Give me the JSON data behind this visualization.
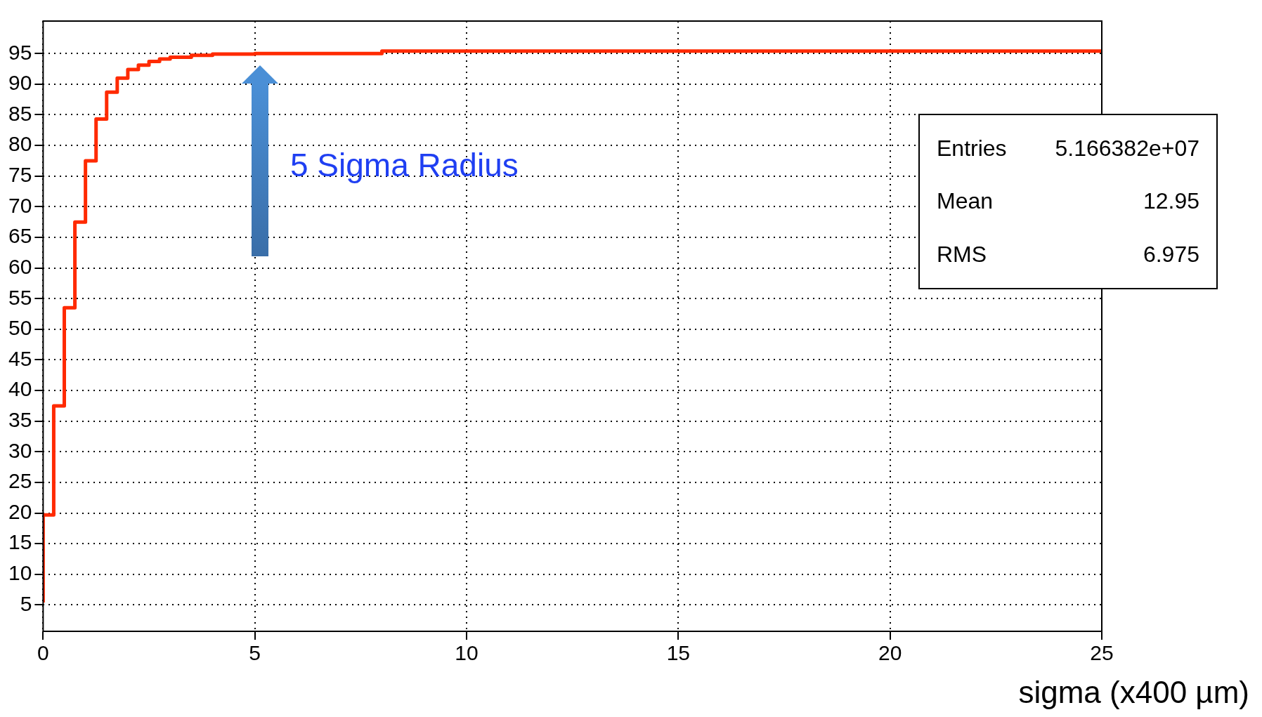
{
  "chart_data": {
    "type": "step",
    "xlabel": "sigma (x400 µm)",
    "x": [
      0,
      0.25,
      0.5,
      0.75,
      1,
      1.25,
      1.5,
      1.75,
      2,
      2.25,
      2.5,
      2.75,
      3,
      3.5,
      4,
      5,
      8,
      16.8,
      25
    ],
    "values": [
      5.4,
      19.7,
      37.5,
      53.5,
      67.5,
      77.5,
      84.3,
      88.7,
      91,
      92.4,
      93.1,
      93.7,
      94.1,
      94.4,
      94.7,
      94.9,
      95,
      95.4,
      95.4
    ],
    "color": "#ff2a00",
    "xlim": [
      0,
      25
    ],
    "xticks": [
      0,
      5,
      10,
      15,
      20,
      25
    ],
    "ylim": [
      0.7,
      100.3
    ],
    "yticks": [
      5,
      10,
      15,
      20,
      25,
      30,
      35,
      40,
      45,
      50,
      55,
      60,
      65,
      70,
      75,
      80,
      85,
      90,
      95
    ],
    "grid": true,
    "line_style": "solid",
    "marker": "none",
    "annotations": [
      "5 Sigma Radius",
      "Entries",
      "5.166382e+07",
      "Mean",
      "12.95",
      "RMS",
      "6.975"
    ]
  }
}
